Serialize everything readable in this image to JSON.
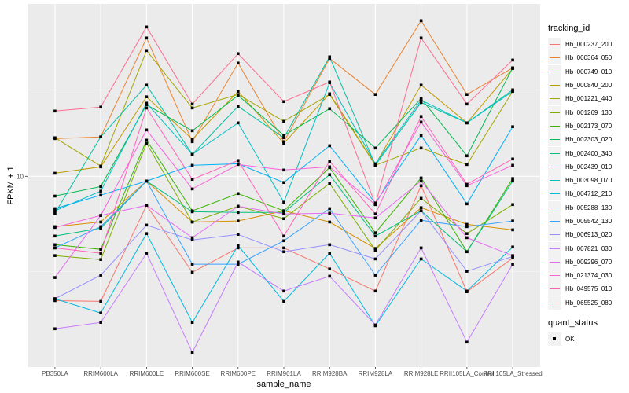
{
  "chart_data": {
    "type": "line",
    "title": "",
    "xlabel": "sample_name",
    "ylabel": "FPKM + 1",
    "yscale": "log10",
    "ylim": [
      3.94,
      23.2
    ],
    "yticks": [
      10
    ],
    "ytick_labels": [
      "10"
    ],
    "grid": true,
    "categories": [
      "PB350LA",
      "RRIM600LA",
      "RRIM600LE",
      "RRIM600SE",
      "RRIM600PE",
      "RRIM901LA",
      "RRIM928BA",
      "RRIM928LA",
      "RRIM928LE",
      "RRII105LA_Control",
      "RRII105LA_Stressed"
    ],
    "legend_title": "tracking_id",
    "legend_position": "right",
    "series": [
      {
        "name": "Hb_000237_200",
        "color": "#F8766D",
        "values": [
          5.45,
          5.43,
          8.68,
          6.26,
          7.05,
          7.05,
          6.36,
          5.71,
          9.55,
          5.69,
          6.71
        ]
      },
      {
        "name": "Hb_000364_050",
        "color": "#EA8331",
        "values": [
          12.02,
          12.12,
          19.65,
          11.84,
          17.38,
          11.84,
          17.78,
          14.91,
          21.38,
          14.91,
          16.98
        ]
      },
      {
        "name": "Hb_000749_010",
        "color": "#D89000",
        "values": [
          7.82,
          8.0,
          9.77,
          8.0,
          8.04,
          8.45,
          8.0,
          7.03,
          8.58,
          7.91,
          7.7
        ]
      },
      {
        "name": "Hb_000840_200",
        "color": "#C09B00",
        "values": [
          10.15,
          10.47,
          14.74,
          11.98,
          15.14,
          11.75,
          14.96,
          10.59,
          15.61,
          12.98,
          16.92
        ]
      },
      {
        "name": "Hb_001221_440",
        "color": "#A3A500",
        "values": [
          12.07,
          10.51,
          18.48,
          13.96,
          14.91,
          13.08,
          14.91,
          10.55,
          11.48,
          10.59,
          15.14
        ]
      },
      {
        "name": "Hb_001269_130",
        "color": "#7CAE00",
        "values": [
          6.79,
          6.66,
          11.75,
          8.0,
          8.64,
          8.13,
          9.66,
          6.97,
          8.98,
          7.56,
          8.71
        ]
      },
      {
        "name": "Hb_002173_070",
        "color": "#39B600",
        "values": [
          7.16,
          7.0,
          11.93,
          8.45,
          9.19,
          8.45,
          10.43,
          7.59,
          9.92,
          6.92,
          9.89
        ]
      },
      {
        "name": "Hb_002303_020",
        "color": "#00BB4E",
        "values": [
          9.08,
          9.51,
          14.18,
          12.49,
          14.85,
          12.21,
          13.91,
          11.48,
          14.62,
          11.05,
          16.98
        ]
      },
      {
        "name": "Hb_002400_340",
        "color": "#00BF7D",
        "values": [
          7.47,
          7.76,
          9.77,
          8.41,
          8.38,
          8.38,
          10.08,
          7.47,
          8.45,
          6.92,
          9.77
        ]
      },
      {
        "name": "Hb_002439_010",
        "color": "#00C1A3",
        "values": [
          8.35,
          12.12,
          15.61,
          11.13,
          14.07,
          12.07,
          17.92,
          10.55,
          14.34,
          12.98,
          15.25
        ]
      },
      {
        "name": "Hb_003098_070",
        "color": "#00BFC4",
        "values": [
          8.45,
          9.3,
          14.29,
          11.13,
          12.98,
          8.81,
          15.79,
          10.63,
          14.51,
          12.98,
          15.14
        ]
      },
      {
        "name": "Hb_004712_210",
        "color": "#00BAE0",
        "values": [
          5.5,
          5.13,
          7.56,
          4.9,
          7.13,
          5.43,
          6.87,
          4.82,
          6.68,
          5.71,
          7.08
        ]
      },
      {
        "name": "Hb_005288_130",
        "color": "#00B0F6",
        "values": [
          8.54,
          9.12,
          9.77,
          10.55,
          10.63,
          9.7,
          11.61,
          8.78,
          12.21,
          8.74,
          12.74
        ]
      },
      {
        "name": "Hb_005542_130",
        "color": "#35A2FF",
        "values": [
          7.05,
          7.82,
          9.77,
          6.51,
          6.51,
          7.3,
          8.54,
          6.17,
          8.07,
          7.82,
          8.04
        ]
      },
      {
        "name": "Hb_006913_020",
        "color": "#9590FF",
        "values": [
          5.5,
          6.17,
          7.88,
          7.33,
          7.53,
          6.92,
          7.16,
          6.68,
          8.45,
          6.29,
          6.76
        ]
      },
      {
        "name": "Hb_007821_030",
        "color": "#C77CFF",
        "values": [
          4.75,
          4.9,
          6.87,
          4.23,
          6.58,
          5.71,
          6.14,
          4.84,
          7.05,
          4.45,
          6.51
        ]
      },
      {
        "name": "Hb_009296_070",
        "color": "#E76BF3",
        "values": [
          6.1,
          8.26,
          8.68,
          7.41,
          8.64,
          8.32,
          8.35,
          8.16,
          9.77,
          7.41,
          6.79
        ]
      },
      {
        "name": "Hb_021374_030",
        "color": "#FA62DB",
        "values": [
          7.79,
          8.26,
          12.54,
          9.4,
          10.59,
          10.31,
          10.47,
          8.71,
          13.03,
          9.55,
          10.55
        ]
      },
      {
        "name": "Hb_049575_010",
        "color": "#FF62BC",
        "values": [
          7.05,
          6.87,
          13.96,
          9.85,
          10.8,
          7.47,
          10.76,
          8.32,
          13.39,
          9.62,
          10.88
        ]
      },
      {
        "name": "Hb_065525_080",
        "color": "#FF6C91",
        "values": [
          13.75,
          14.02,
          20.73,
          14.23,
          18.2,
          14.4,
          15.85,
          8.71,
          19.65,
          14.23,
          17.64
        ]
      }
    ],
    "legend2_title": "quant_status",
    "legend2_items": [
      {
        "label": "OK",
        "shape": "square",
        "color": "#000000"
      }
    ]
  }
}
